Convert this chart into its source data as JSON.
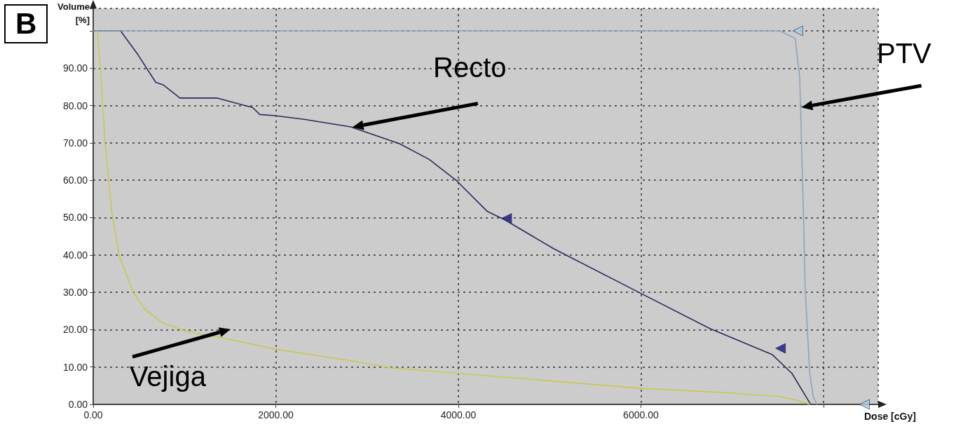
{
  "chart_data": {
    "type": "line",
    "xlabel": "Dose [cGy]",
    "ylabel": "Volume [%]",
    "xlim": [
      0,
      8600
    ],
    "ylim": [
      0,
      106
    ],
    "xticks": [
      {
        "value": 0,
        "label": "0.00"
      },
      {
        "value": 2000,
        "label": "2000.00"
      },
      {
        "value": 4000,
        "label": "4000.00"
      },
      {
        "value": 6000,
        "label": "6000.00"
      },
      {
        "value": 8000,
        "label": null
      }
    ],
    "yticks": [
      {
        "value": 0,
        "label": "0.00"
      },
      {
        "value": 10,
        "label": "10.00"
      },
      {
        "value": 20,
        "label": "20.00"
      },
      {
        "value": 30,
        "label": "30.00"
      },
      {
        "value": 40,
        "label": "40.00"
      },
      {
        "value": 50,
        "label": "50.00"
      },
      {
        "value": 60,
        "label": "60.00"
      },
      {
        "value": 70,
        "label": "70.00"
      },
      {
        "value": 80,
        "label": "80.00"
      },
      {
        "value": 90,
        "label": "90.00"
      },
      {
        "value": 100,
        "label": null
      }
    ],
    "grid": true,
    "annotations": [
      "B",
      "Recto",
      "PTV",
      "Vejiga"
    ],
    "series": [
      {
        "color": "#2b2b5e",
        "marker": "none",
        "line_style": "solid",
        "x": [
          0,
          300,
          490,
          685,
          770,
          950,
          1360,
          1645,
          1745,
          1825,
          1990,
          2310,
          2820,
          3355,
          3680,
          3980,
          4315,
          4510,
          5050,
          5985,
          6755,
          7440,
          7655,
          7850,
          7860
        ],
        "values": [
          100,
          100,
          93.6,
          86.2,
          85.5,
          82,
          82,
          80.1,
          79.5,
          77.6,
          77.3,
          76.3,
          74.3,
          69.8,
          65.6,
          59.9,
          51.7,
          49.4,
          41.6,
          29.9,
          20.3,
          13.3,
          8.3,
          0.4,
          0
        ]
      },
      {
        "color": "#c8c850",
        "marker": "none",
        "line_style": "solid",
        "x": [
          45,
          80,
          130,
          200,
          285,
          440,
          570,
          745,
          1000,
          1515,
          1990,
          2820,
          3250,
          4000,
          6000,
          6885,
          7525,
          7740,
          7850
        ],
        "values": [
          100,
          89.7,
          69.9,
          52,
          39.8,
          29.9,
          25.4,
          22,
          19.7,
          17.3,
          14.8,
          11.7,
          9.8,
          8.3,
          4.3,
          3.2,
          2.1,
          0.9,
          0
        ]
      },
      {
        "color": "#8fa3c0",
        "marker": "none",
        "line_style": "solid",
        "x": [
          0,
          7520,
          7690,
          7740,
          7780,
          7800,
          7850,
          7890,
          7930
        ],
        "values": [
          100,
          100,
          98,
          87.6,
          52,
          31,
          8.3,
          1.9,
          0
        ]
      },
      {
        "type": "scatter",
        "color": "#14148a",
        "marker": "triangle",
        "x": [
          4530,
          7530
        ],
        "values": [
          49.8,
          15
        ]
      },
      {
        "type": "scatter",
        "color": "#a8d0e8",
        "marker": "triangle",
        "x": [
          7720,
          8450
        ],
        "values": [
          100,
          0
        ]
      }
    ]
  }
}
